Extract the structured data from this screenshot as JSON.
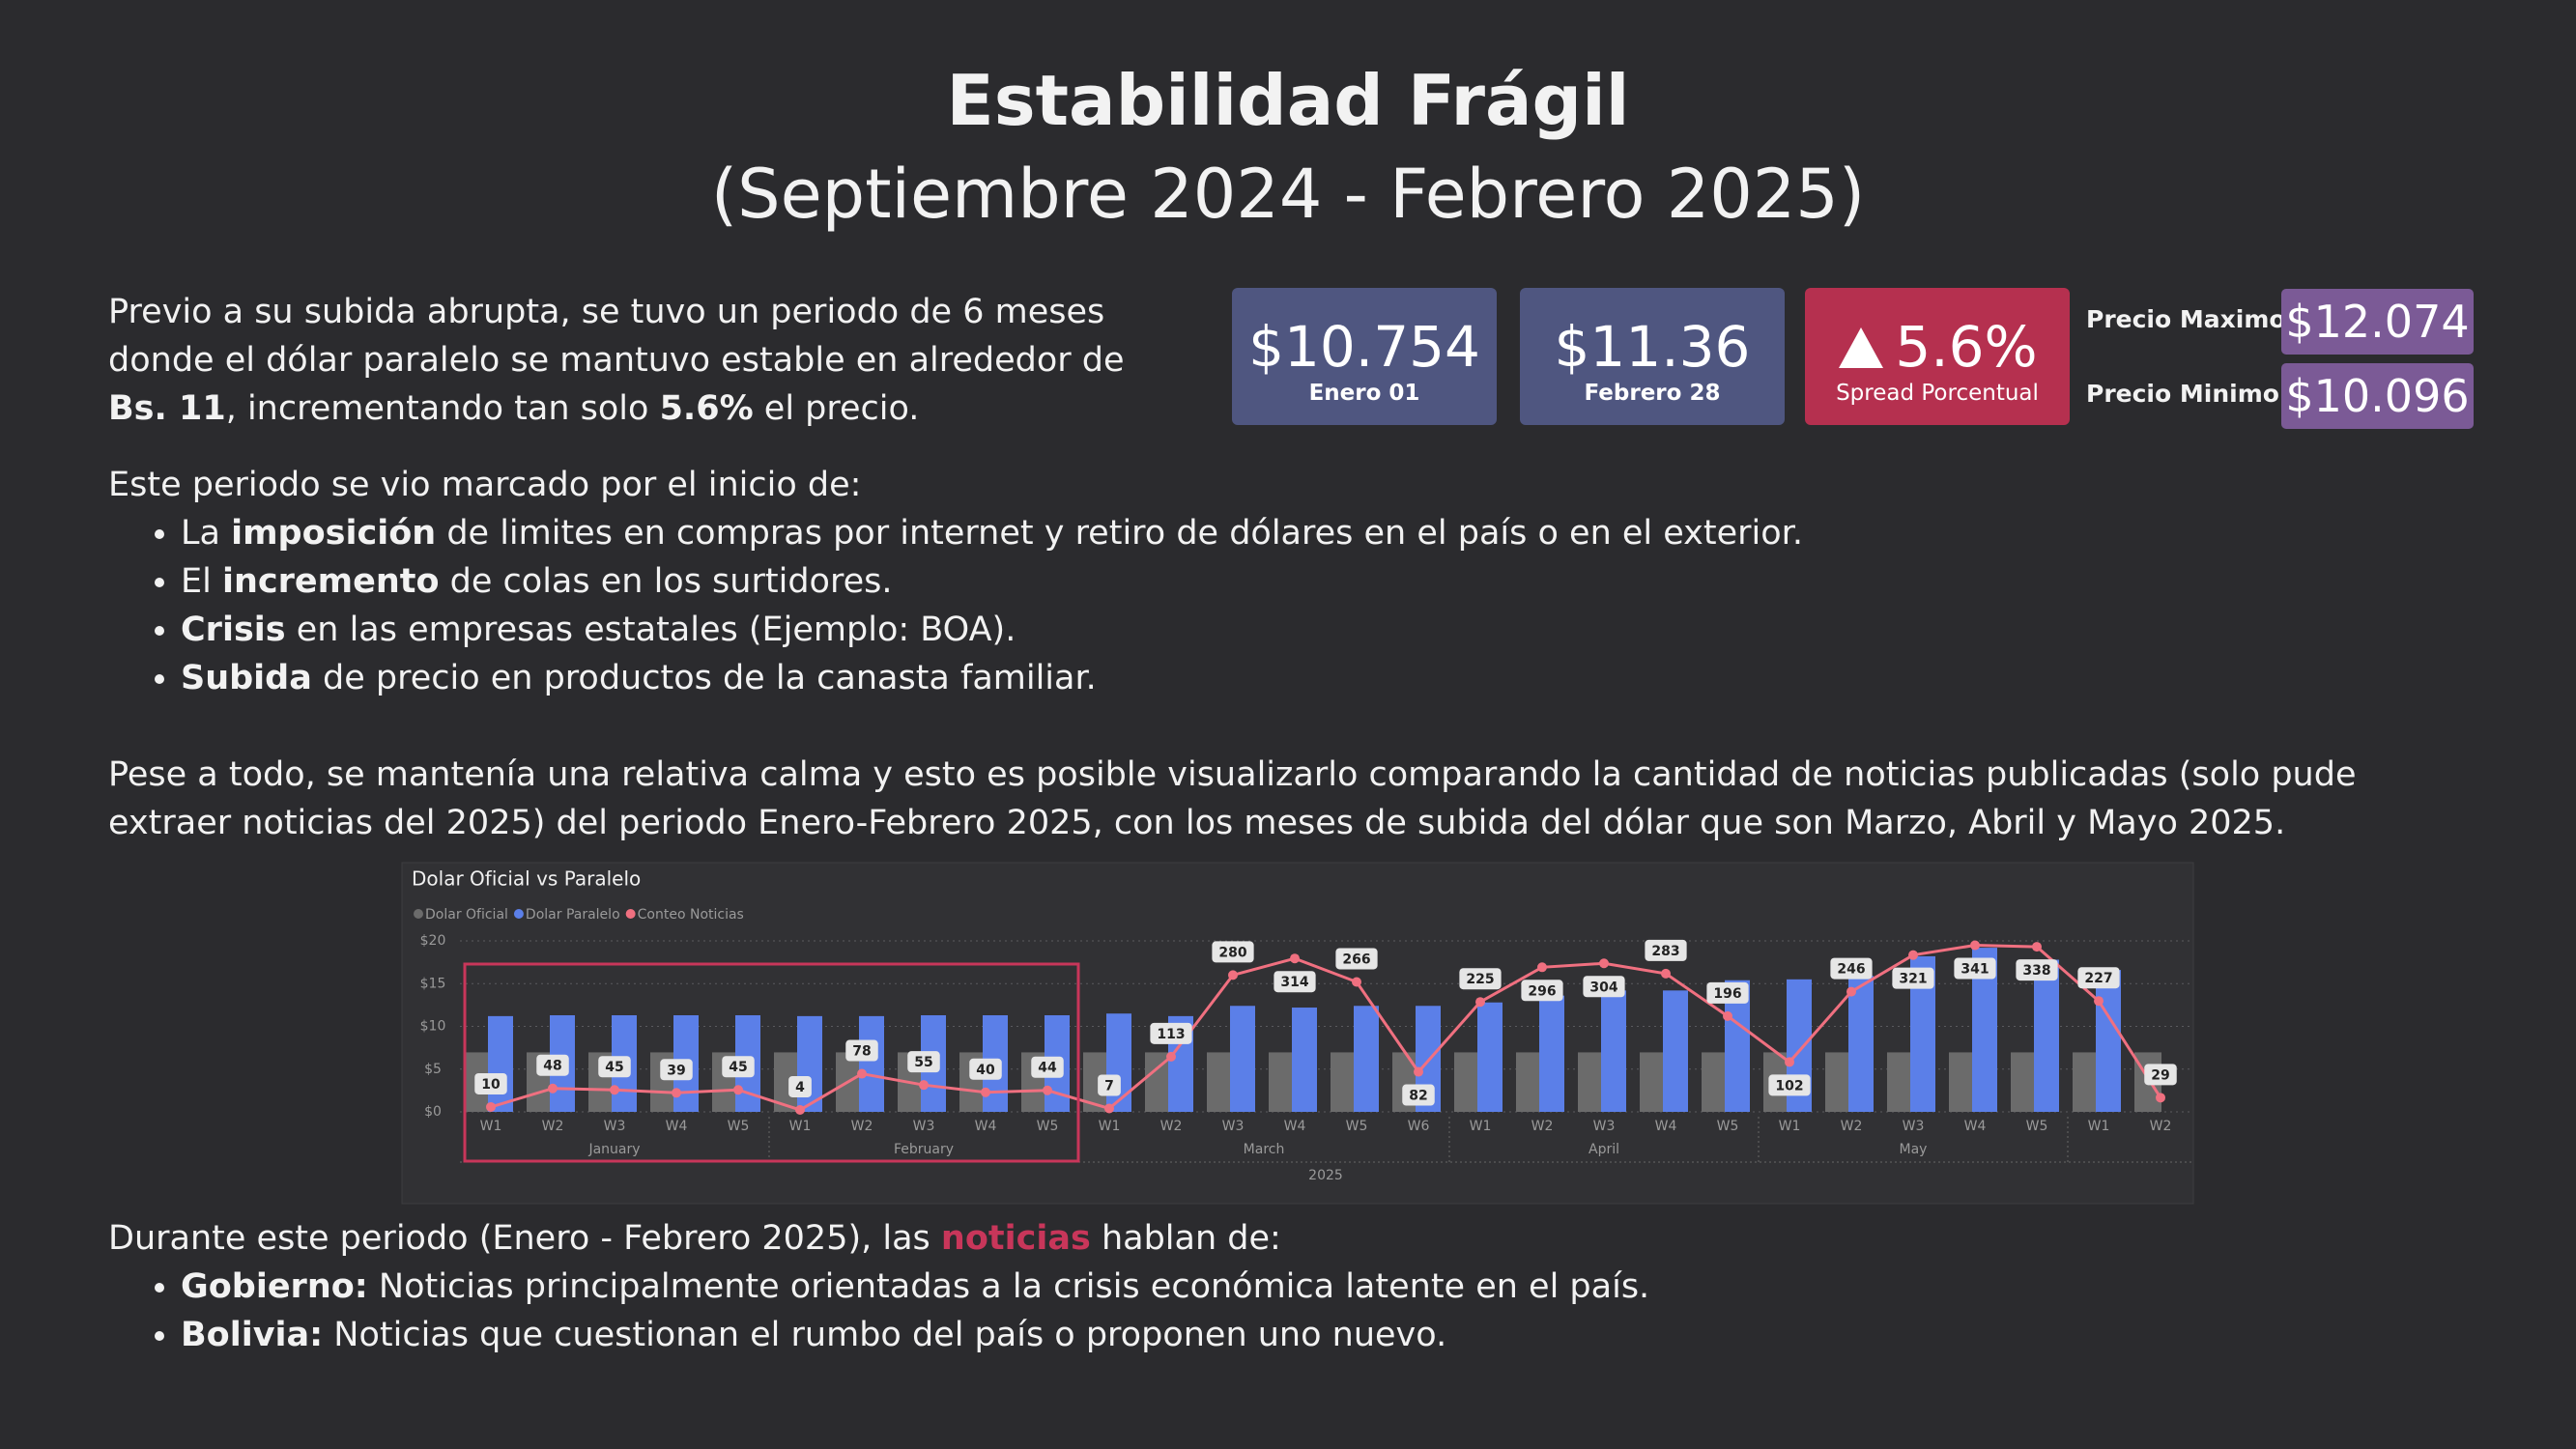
{
  "header": {
    "title": "Estabilidad Frágil",
    "subtitle": "(Septiembre 2024 - Febrero 2025)"
  },
  "intro": [
    {
      "text": "Previo a su subida abrupta, se tuvo un periodo de 6 meses donde el dólar paralelo se mantuvo estable en alrededor de "
    },
    {
      "text": "Bs. 11",
      "bold": true
    },
    {
      "text": ", incrementando tan solo "
    },
    {
      "text": "5.6%",
      "bold": true
    },
    {
      "text": " el precio."
    }
  ],
  "kpis": [
    {
      "value": "$10.754",
      "label": "Enero 01",
      "color": "#4f5680"
    },
    {
      "value": "$11.36",
      "label": "Febrero 28",
      "color": "#4f5680"
    },
    {
      "value": "5.6%",
      "label": "Spread Porcentual",
      "color": "#b5304f"
    }
  ],
  "price_range": [
    {
      "label": "Precio Maximo",
      "value": "$12.074"
    },
    {
      "label": "Precio Minimo",
      "value": "$10.096"
    }
  ],
  "events": {
    "lead": "Este periodo se vio marcado por el inicio de:",
    "items": [
      [
        {
          "text": "La "
        },
        {
          "text": "imposición",
          "bold": true
        },
        {
          "text": " de limites en compras por internet y retiro de dólares en el país o en el exterior."
        }
      ],
      [
        {
          "text": "El "
        },
        {
          "text": "incremento",
          "bold": true
        },
        {
          "text": " de colas en los surtidores."
        }
      ],
      [
        {
          "text": "Crisis",
          "bold": true
        },
        {
          "text": " en las empresas estatales (Ejemplo: BOA)."
        }
      ],
      [
        {
          "text": "Subida",
          "bold": true
        },
        {
          "text": " de precio en productos de la canasta familiar."
        }
      ]
    ]
  },
  "context": [
    {
      "text": "Pese a todo, se mantenía una relativa calma y esto es posible visualizarlo comparando la cantidad de noticias publicadas (solo pude extraer noticias del 2025) del periodo Enero-Febrero 2025, con los meses de subida del dólar que son Marzo, Abril y Mayo 2025."
    }
  ],
  "chart_data": {
    "type": "combo",
    "title": "Dolar Oficial vs Paralelo",
    "categories": [
      "W1",
      "W2",
      "W3",
      "W4",
      "W5",
      "W1",
      "W2",
      "W3",
      "W4",
      "W5",
      "W1",
      "W2",
      "W3",
      "W4",
      "W5",
      "W6",
      "W1",
      "W2",
      "W3",
      "W4",
      "W5",
      "W1",
      "W2",
      "W3",
      "W4",
      "W5",
      "W1",
      "W2"
    ],
    "x_groups": [
      {
        "label": "January",
        "count": 5
      },
      {
        "label": "February",
        "count": 5
      },
      {
        "label": "March",
        "count": 6
      },
      {
        "label": "April",
        "count": 5
      },
      {
        "label": "May",
        "count": 5
      },
      {
        "label": null,
        "count": 2
      }
    ],
    "year_label": "2025",
    "series": [
      {
        "name": "Dolar Oficial",
        "type": "bar",
        "color": "#6b6b6b",
        "values": [
          6.96,
          6.96,
          6.96,
          6.96,
          6.96,
          6.96,
          6.96,
          6.96,
          6.96,
          6.96,
          6.96,
          6.96,
          6.96,
          6.96,
          6.96,
          6.96,
          6.96,
          6.96,
          6.96,
          6.96,
          6.96,
          6.96,
          6.96,
          6.96,
          6.96,
          6.96,
          6.96,
          6.96
        ]
      },
      {
        "name": "Dolar Paralelo",
        "type": "bar",
        "color": "#5b7fe8",
        "values": [
          11.2,
          11.3,
          11.3,
          11.3,
          11.3,
          11.2,
          11.2,
          11.3,
          11.3,
          11.3,
          11.5,
          11.2,
          12.4,
          12.2,
          12.4,
          12.4,
          12.8,
          13.6,
          14.2,
          14.2,
          15.4,
          15.5,
          15.9,
          18.2,
          19.2,
          17.8,
          16.6,
          null
        ]
      },
      {
        "name": "Conteo Noticias",
        "type": "line",
        "axis": "y2",
        "color": "#f07080",
        "values": [
          10,
          48,
          45,
          39,
          45,
          4,
          78,
          55,
          40,
          44,
          7,
          113,
          280,
          314,
          266,
          82,
          225,
          296,
          304,
          283,
          196,
          102,
          246,
          321,
          341,
          338,
          227,
          29
        ]
      }
    ],
    "ylim": [
      0,
      20
    ],
    "yticks": [
      {
        "value": 0,
        "label": "$0"
      },
      {
        "value": 5,
        "label": "$5"
      },
      {
        "value": 10,
        "label": "$10"
      },
      {
        "value": 15,
        "label": "$15"
      },
      {
        "value": 20,
        "label": "$20"
      }
    ],
    "y2lim": [
      0,
      350
    ],
    "grid": true
  },
  "news": {
    "lead": [
      {
        "text": "Durante este periodo (Enero - Febrero 2025), las "
      },
      {
        "text": "noticias",
        "bold": true,
        "color": "#c8365a"
      },
      {
        "text": " hablan de:"
      }
    ],
    "items": [
      [
        {
          "text": "Gobierno:",
          "bold": true
        },
        {
          "text": " Noticias principalmente orientadas a la crisis económica latente en el país."
        }
      ],
      [
        {
          "text": "Bolivia:",
          "bold": true
        },
        {
          "text": " Noticias que cuestionan el rumbo del país o proponen uno nuevo."
        }
      ]
    ]
  }
}
